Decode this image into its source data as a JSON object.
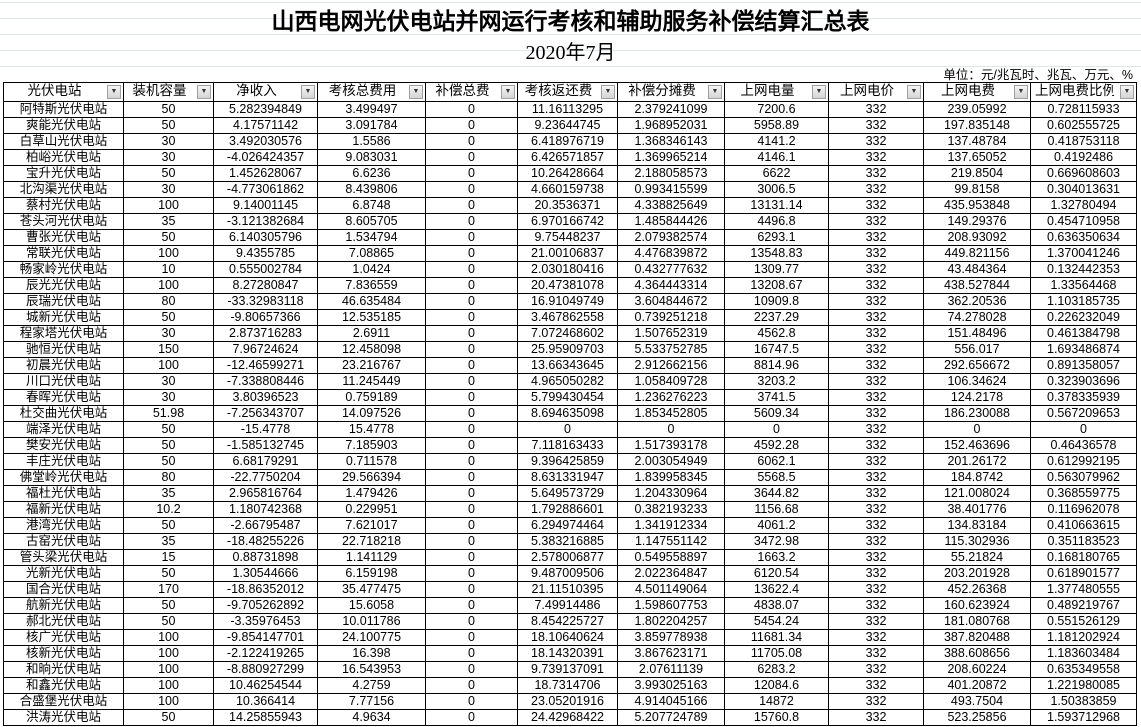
{
  "title": "山西电网光伏电站并网运行考核和辅助服务补偿结算汇总表",
  "subtitle": "2020年7月",
  "unit": "单位：元/兆瓦时、兆瓦、万元、%",
  "columns": [
    "光伏电站",
    "装机容量",
    "净收入",
    "考核总费用",
    "补偿总费",
    "考核返还费",
    "补偿分摊费",
    "上网电量",
    "上网电价",
    "上网电费",
    "上网电费比例"
  ],
  "rows": [
    [
      "阿特斯光伏电站",
      "50",
      "5.282394849",
      "3.499497",
      "0",
      "11.16113295",
      "2.379241099",
      "7200.6",
      "332",
      "239.05992",
      "0.728115933"
    ],
    [
      "爽能光伏电站",
      "50",
      "4.17571142",
      "3.091784",
      "0",
      "9.23644745",
      "1.968952031",
      "5958.89",
      "332",
      "197.835148",
      "0.602555725"
    ],
    [
      "白草山光伏电站",
      "30",
      "3.492030576",
      "1.5586",
      "0",
      "6.418976719",
      "1.368346143",
      "4141.2",
      "332",
      "137.48784",
      "0.418753118"
    ],
    [
      "柏峪光伏电站",
      "30",
      "-4.026424357",
      "9.083031",
      "0",
      "6.426571857",
      "1.369965214",
      "4146.1",
      "332",
      "137.65052",
      "0.4192486"
    ],
    [
      "宝升光伏电站",
      "50",
      "1.452628067",
      "6.6236",
      "0",
      "10.26428664",
      "2.188058573",
      "6622",
      "332",
      "219.8504",
      "0.669608603"
    ],
    [
      "北沟渠光伏电站",
      "30",
      "-4.773061862",
      "8.439806",
      "0",
      "4.660159738",
      "0.993415599",
      "3006.5",
      "332",
      "99.8158",
      "0.304013631"
    ],
    [
      "蔡村光伏电站",
      "100",
      "9.14001145",
      "6.8748",
      "0",
      "20.3536371",
      "4.338825649",
      "13131.14",
      "332",
      "435.953848",
      "1.32780494"
    ],
    [
      "苍头河光伏电站",
      "35",
      "-3.121382684",
      "8.605705",
      "0",
      "6.970166742",
      "1.485844426",
      "4496.8",
      "332",
      "149.29376",
      "0.454710958"
    ],
    [
      "曹张光伏电站",
      "50",
      "6.140305796",
      "1.534794",
      "0",
      "9.75448237",
      "2.079382574",
      "6293.1",
      "332",
      "208.93092",
      "0.636350634"
    ],
    [
      "常联光伏电站",
      "100",
      "9.4355785",
      "7.08865",
      "0",
      "21.00106837",
      "4.476839872",
      "13548.83",
      "332",
      "449.821156",
      "1.370041246"
    ],
    [
      "畅家岭光伏电站",
      "10",
      "0.555002784",
      "1.0424",
      "0",
      "2.030180416",
      "0.432777632",
      "1309.77",
      "332",
      "43.484364",
      "0.132442353"
    ],
    [
      "辰光光伏电站",
      "100",
      "8.27280847",
      "7.836559",
      "0",
      "20.47381078",
      "4.364443314",
      "13208.67",
      "332",
      "438.527844",
      "1.33564468"
    ],
    [
      "辰瑞光伏电站",
      "80",
      "-33.32983118",
      "46.635484",
      "0",
      "16.91049749",
      "3.604844672",
      "10909.8",
      "332",
      "362.20536",
      "1.103185735"
    ],
    [
      "城新光伏电站",
      "50",
      "-9.80657366",
      "12.535185",
      "0",
      "3.467862558",
      "0.739251218",
      "2237.29",
      "332",
      "74.278028",
      "0.226232049"
    ],
    [
      "程家塔光伏电站",
      "30",
      "2.873716283",
      "2.6911",
      "0",
      "7.072468602",
      "1.507652319",
      "4562.8",
      "332",
      "151.48496",
      "0.461384798"
    ],
    [
      "驰恒光伏电站",
      "150",
      "7.96724624",
      "12.458098",
      "0",
      "25.95909703",
      "5.533752785",
      "16747.5",
      "332",
      "556.017",
      "1.693486874"
    ],
    [
      "初晨光伏电站",
      "100",
      "-12.46599271",
      "23.216767",
      "0",
      "13.66343645",
      "2.912662156",
      "8814.96",
      "332",
      "292.656672",
      "0.891358057"
    ],
    [
      "川口光伏电站",
      "30",
      "-7.338808446",
      "11.245449",
      "0",
      "4.965050282",
      "1.058409728",
      "3203.2",
      "332",
      "106.34624",
      "0.323903696"
    ],
    [
      "春晖光伏电站",
      "30",
      "3.80396523",
      "0.759189",
      "0",
      "5.799430454",
      "1.236276223",
      "3741.5",
      "332",
      "124.2178",
      "0.378335939"
    ],
    [
      "杜交曲光伏电站",
      "51.98",
      "-7.256343707",
      "14.097526",
      "0",
      "8.694635098",
      "1.853452805",
      "5609.34",
      "332",
      "186.230088",
      "0.567209653"
    ],
    [
      "端泽光伏电站",
      "50",
      "-15.4778",
      "15.4778",
      "0",
      "0",
      "0",
      "0",
      "332",
      "0",
      "0"
    ],
    [
      "樊安光伏电站",
      "50",
      "-1.585132745",
      "7.185903",
      "0",
      "7.118163433",
      "1.517393178",
      "4592.28",
      "332",
      "152.463696",
      "0.46436578"
    ],
    [
      "丰庄光伏电站",
      "50",
      "6.68179291",
      "0.711578",
      "0",
      "9.396425859",
      "2.003054949",
      "6062.1",
      "332",
      "201.26172",
      "0.612992195"
    ],
    [
      "佛堂岭光伏电站",
      "80",
      "-22.7750204",
      "29.566394",
      "0",
      "8.631331947",
      "1.839958345",
      "5568.5",
      "332",
      "184.8742",
      "0.563079962"
    ],
    [
      "福杜光伏电站",
      "35",
      "2.965816764",
      "1.479426",
      "0",
      "5.649573729",
      "1.204330964",
      "3644.82",
      "332",
      "121.008024",
      "0.368559775"
    ],
    [
      "福新光伏电站",
      "10.2",
      "1.180742368",
      "0.229951",
      "0",
      "1.792886601",
      "0.382193233",
      "1156.68",
      "332",
      "38.401776",
      "0.116962078"
    ],
    [
      "港湾光伏电站",
      "50",
      "-2.66795487",
      "7.621017",
      "0",
      "6.294974464",
      "1.341912334",
      "4061.2",
      "332",
      "134.83184",
      "0.410663615"
    ],
    [
      "古窑光伏电站",
      "35",
      "-18.48255226",
      "22.718218",
      "0",
      "5.383216885",
      "1.147551142",
      "3472.98",
      "332",
      "115.302936",
      "0.351183523"
    ],
    [
      "管头梁光伏电站",
      "15",
      "0.88731898",
      "1.141129",
      "0",
      "2.578006877",
      "0.549558897",
      "1663.2",
      "332",
      "55.21824",
      "0.168180765"
    ],
    [
      "光新光伏电站",
      "50",
      "1.30544666",
      "6.159198",
      "0",
      "9.487009506",
      "2.022364847",
      "6120.54",
      "332",
      "203.201928",
      "0.618901577"
    ],
    [
      "国合光伏电站",
      "170",
      "-18.86352012",
      "35.477475",
      "0",
      "21.11510395",
      "4.501149064",
      "13622.4",
      "332",
      "452.26368",
      "1.377480555"
    ],
    [
      "航新光伏电站",
      "50",
      "-9.705262892",
      "15.6058",
      "0",
      "7.49914486",
      "1.598607753",
      "4838.07",
      "332",
      "160.623924",
      "0.489219767"
    ],
    [
      "郝北光伏电站",
      "50",
      "-3.35976453",
      "10.011786",
      "0",
      "8.454225727",
      "1.802204257",
      "5454.24",
      "332",
      "181.080768",
      "0.551526129"
    ],
    [
      "核广光伏电站",
      "100",
      "-9.854147701",
      "24.100775",
      "0",
      "18.10640624",
      "3.859778938",
      "11681.34",
      "332",
      "387.820488",
      "1.181202924"
    ],
    [
      "核新光伏电站",
      "100",
      "-2.122419265",
      "16.398",
      "0",
      "18.14320391",
      "3.867623171",
      "11705.08",
      "332",
      "388.608656",
      "1.183603484"
    ],
    [
      "和晌光伏电站",
      "100",
      "-8.880927299",
      "16.543953",
      "0",
      "9.739137091",
      "2.07611139",
      "6283.2",
      "332",
      "208.60224",
      "0.635349558"
    ],
    [
      "和鑫光伏电站",
      "100",
      "10.46254544",
      "4.2759",
      "0",
      "18.7314706",
      "3.993025163",
      "12084.6",
      "332",
      "401.20872",
      "1.221980085"
    ],
    [
      "合盛堡光伏电站",
      "100",
      "10.366414",
      "7.77156",
      "0",
      "23.05201916",
      "4.914045166",
      "14872",
      "332",
      "493.7504",
      "1.50383859"
    ],
    [
      "洪涛光伏电站",
      "50",
      "14.25855943",
      "4.9634",
      "0",
      "24.42968422",
      "5.207724789",
      "15760.8",
      "332",
      "523.25856",
      "1.593712968"
    ]
  ]
}
